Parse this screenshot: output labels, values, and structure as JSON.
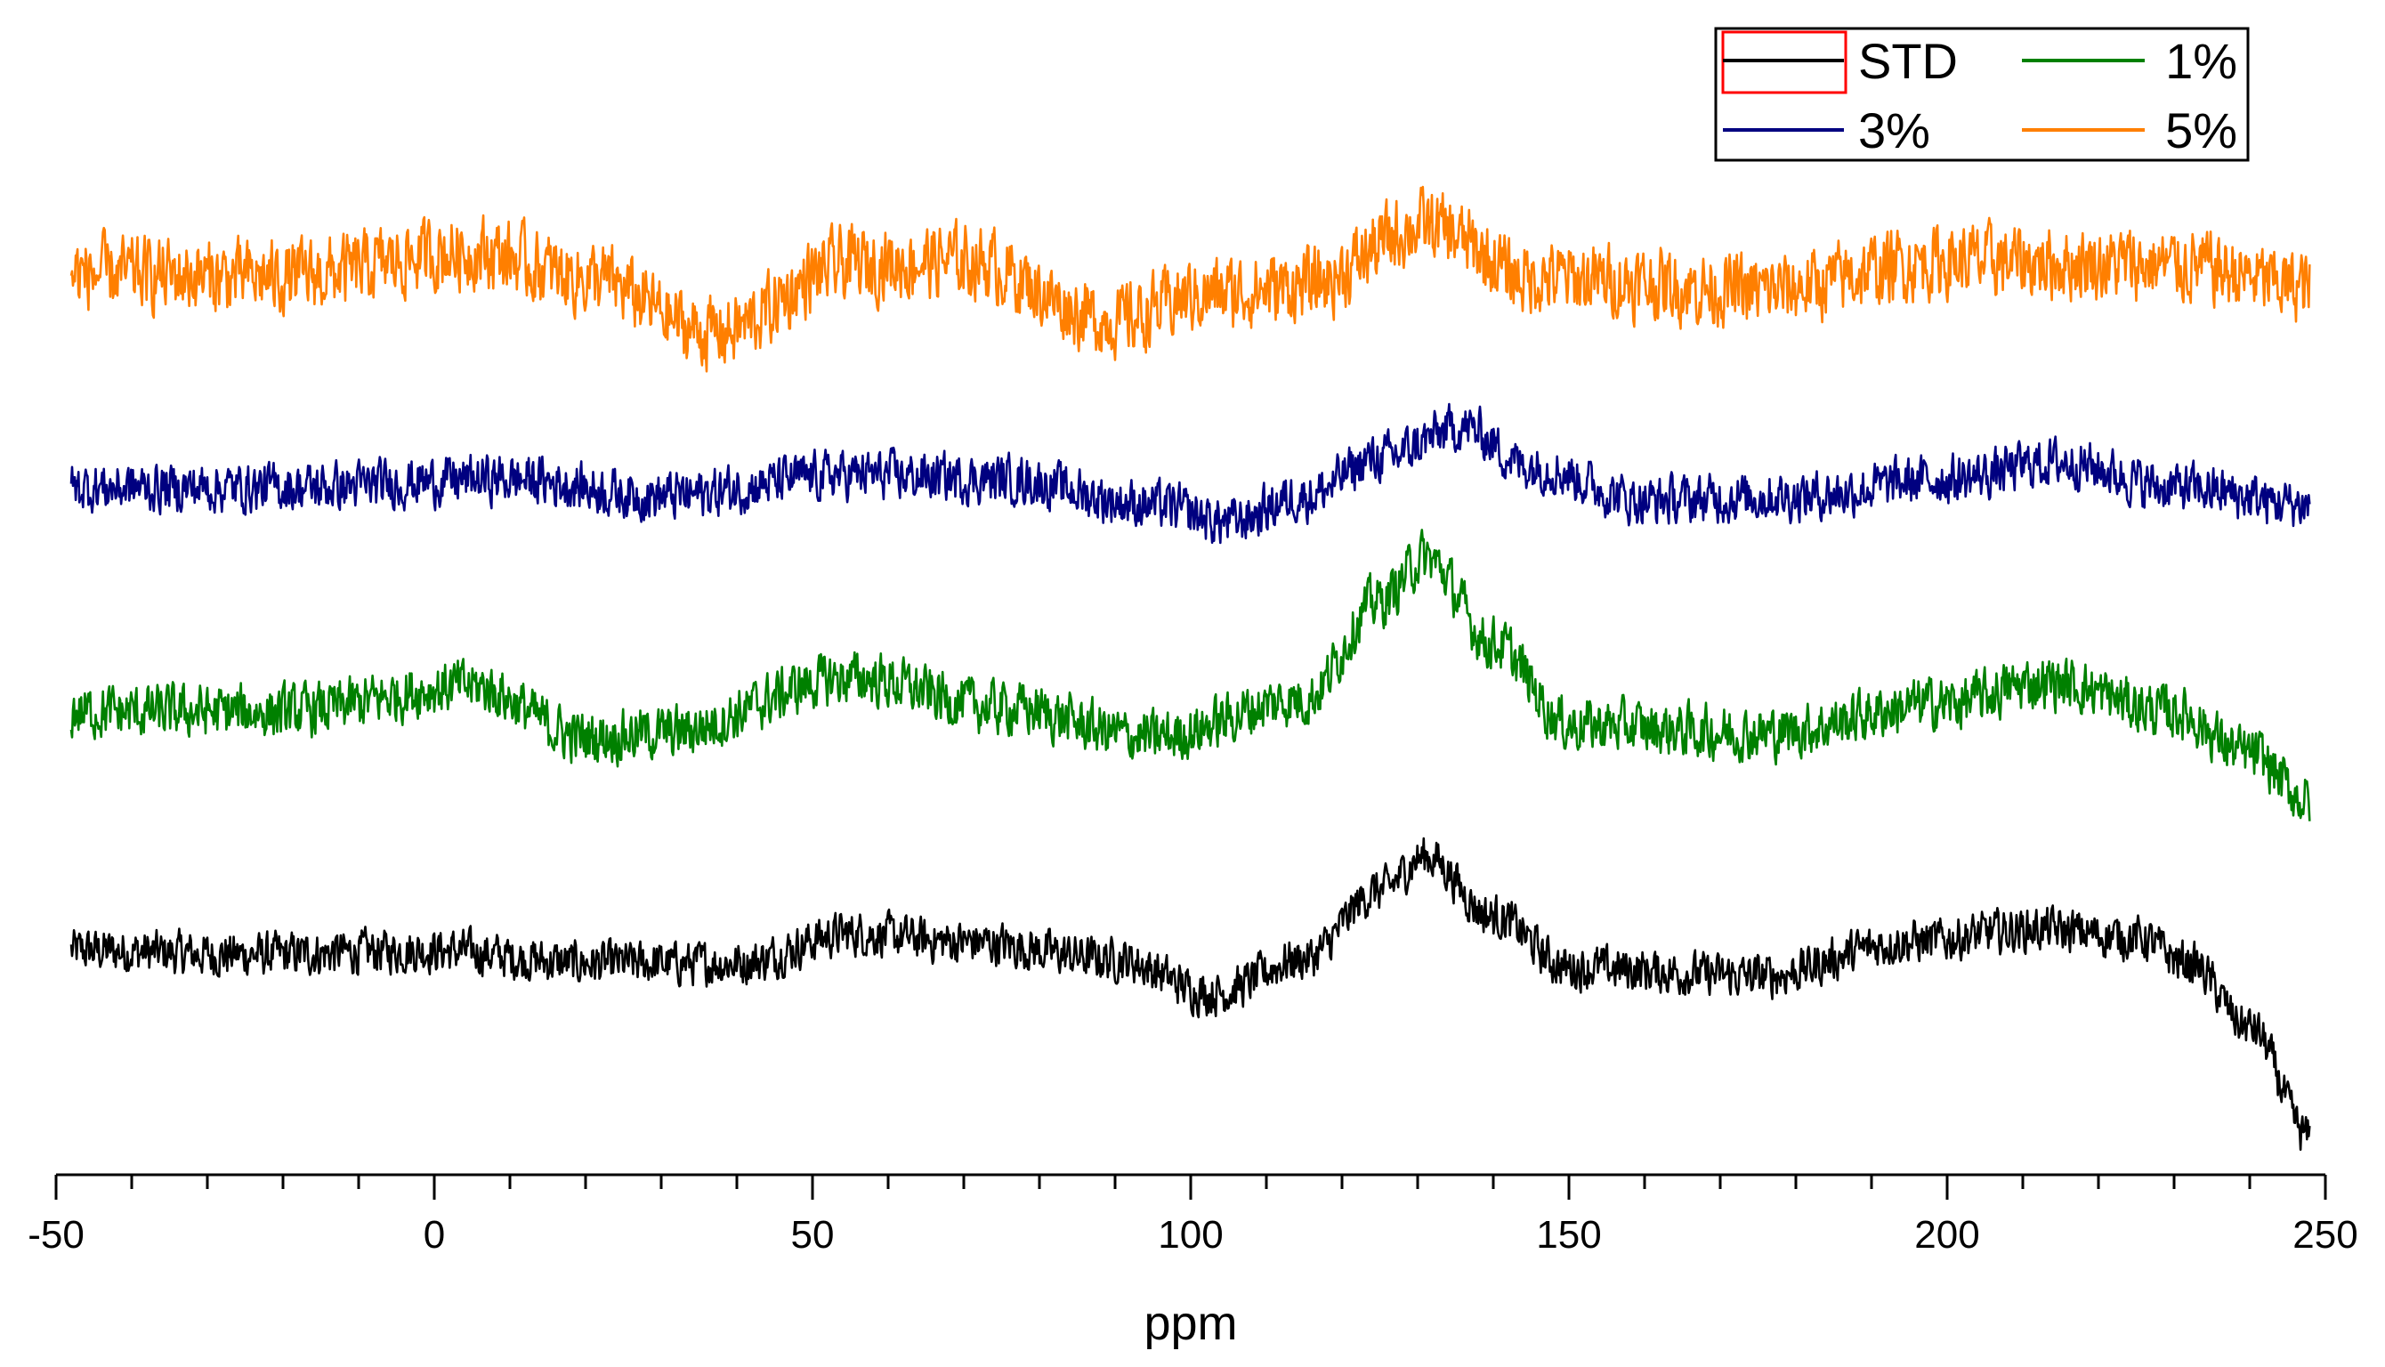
{
  "chart_data": {
    "type": "line",
    "title": "",
    "xlabel": "ppm",
    "ylabel": "",
    "xlim": [
      -50,
      250
    ],
    "x_ticks": [
      -50,
      0,
      50,
      100,
      150,
      200,
      250
    ],
    "x_tick_labels": [
      "-50",
      "0",
      "50",
      "100",
      "150",
      "200",
      "250"
    ],
    "x_minor_step": 10,
    "grid": false,
    "y_axis_shown": false,
    "stacked_offset": true,
    "legend": {
      "position": "top-right",
      "columns": 2,
      "entries": [
        "STD",
        "1%",
        "3%",
        "5%"
      ]
    },
    "series": [
      {
        "name": "STD",
        "color": "#000000",
        "noise": 0.45,
        "peaks": [
          {
            "x": -48,
            "y": 0.0
          },
          {
            "x": -25,
            "y": -0.1
          },
          {
            "x": 0,
            "y": 0.0
          },
          {
            "x": 20,
            "y": -0.3
          },
          {
            "x": 40,
            "y": -0.3
          },
          {
            "x": 55,
            "y": 0.4
          },
          {
            "x": 70,
            "y": 0.2
          },
          {
            "x": 90,
            "y": -0.2
          },
          {
            "x": 103,
            "y": -1.0
          },
          {
            "x": 115,
            "y": -0.2
          },
          {
            "x": 125,
            "y": 1.4
          },
          {
            "x": 131,
            "y": 2.2
          },
          {
            "x": 140,
            "y": 0.8
          },
          {
            "x": 150,
            "y": -0.4
          },
          {
            "x": 175,
            "y": -0.6
          },
          {
            "x": 195,
            "y": 0.2
          },
          {
            "x": 212,
            "y": 0.5
          },
          {
            "x": 225,
            "y": 0.3
          },
          {
            "x": 232,
            "y": -0.3
          },
          {
            "x": 240,
            "y": -1.8
          },
          {
            "x": 248,
            "y": -4.4
          }
        ]
      },
      {
        "name": "1%",
        "color": "#008000",
        "noise": 0.55,
        "peaks": [
          {
            "x": -48,
            "y": 0.0
          },
          {
            "x": -20,
            "y": 0.0
          },
          {
            "x": 5,
            "y": 0.6
          },
          {
            "x": 20,
            "y": -0.6
          },
          {
            "x": 30,
            "y": -0.5
          },
          {
            "x": 55,
            "y": 0.8
          },
          {
            "x": 75,
            "y": 0.1
          },
          {
            "x": 95,
            "y": -0.6
          },
          {
            "x": 115,
            "y": 0.3
          },
          {
            "x": 125,
            "y": 2.6
          },
          {
            "x": 131,
            "y": 3.6
          },
          {
            "x": 140,
            "y": 1.6
          },
          {
            "x": 150,
            "y": -0.3
          },
          {
            "x": 175,
            "y": -0.5
          },
          {
            "x": 200,
            "y": 0.2
          },
          {
            "x": 213,
            "y": 0.7
          },
          {
            "x": 230,
            "y": 0.0
          },
          {
            "x": 240,
            "y": -1.0
          },
          {
            "x": 248,
            "y": -2.1
          }
        ]
      },
      {
        "name": "3%",
        "color": "#000080",
        "noise": 0.5,
        "peaks": [
          {
            "x": -48,
            "y": 0.0
          },
          {
            "x": -20,
            "y": 0.0
          },
          {
            "x": 10,
            "y": 0.2
          },
          {
            "x": 30,
            "y": -0.2
          },
          {
            "x": 55,
            "y": 0.3
          },
          {
            "x": 75,
            "y": 0.2
          },
          {
            "x": 95,
            "y": -0.4
          },
          {
            "x": 105,
            "y": -0.8
          },
          {
            "x": 115,
            "y": -0.2
          },
          {
            "x": 125,
            "y": 0.7
          },
          {
            "x": 136,
            "y": 1.4
          },
          {
            "x": 145,
            "y": 0.5
          },
          {
            "x": 160,
            "y": -0.3
          },
          {
            "x": 180,
            "y": -0.2
          },
          {
            "x": 200,
            "y": 0.2
          },
          {
            "x": 215,
            "y": 0.6
          },
          {
            "x": 230,
            "y": 0.0
          },
          {
            "x": 248,
            "y": -0.4
          }
        ]
      },
      {
        "name": "5%",
        "color": "#FF7F00",
        "noise": 0.75,
        "peaks": [
          {
            "x": -48,
            "y": 0.1
          },
          {
            "x": -20,
            "y": 0.0
          },
          {
            "x": 5,
            "y": 0.6
          },
          {
            "x": 20,
            "y": 0.0
          },
          {
            "x": 37,
            "y": -1.3
          },
          {
            "x": 55,
            "y": 0.3
          },
          {
            "x": 70,
            "y": 0.4
          },
          {
            "x": 90,
            "y": -1.0
          },
          {
            "x": 102,
            "y": -0.4
          },
          {
            "x": 115,
            "y": -0.2
          },
          {
            "x": 131,
            "y": 1.2
          },
          {
            "x": 145,
            "y": 0.0
          },
          {
            "x": 175,
            "y": -0.3
          },
          {
            "x": 200,
            "y": 0.4
          },
          {
            "x": 230,
            "y": 0.3
          },
          {
            "x": 248,
            "y": -0.2
          }
        ]
      }
    ]
  }
}
